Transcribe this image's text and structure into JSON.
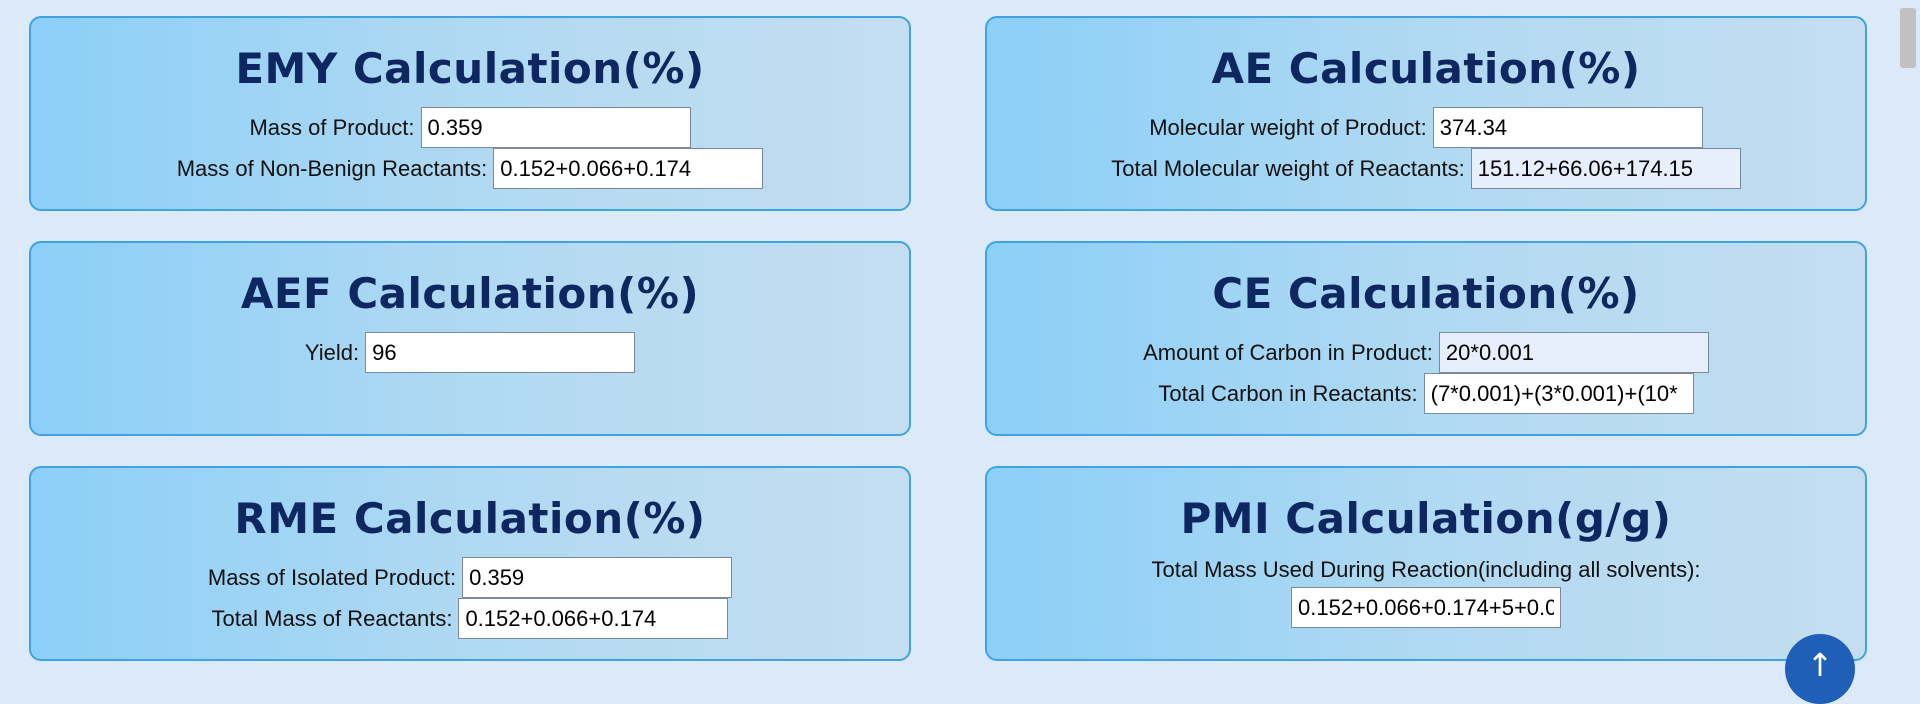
{
  "cards": [
    {
      "title": "EMY Calculation(%)",
      "fields": [
        {
          "label": "Mass of Product:",
          "value": "0.359"
        },
        {
          "label": "Mass of Non-Benign Reactants:",
          "value": "0.152+0.066+0.174"
        }
      ]
    },
    {
      "title": "AE Calculation(%)",
      "fields": [
        {
          "label": "Molecular weight of Product:",
          "value": "374.34"
        },
        {
          "label": "Total Molecular weight of Reactants:",
          "value": "151.12+66.06+174.15"
        }
      ]
    },
    {
      "title": "AEF Calculation(%)",
      "fields": [
        {
          "label": "Yield:",
          "value": "96"
        }
      ]
    },
    {
      "title": "CE Calculation(%)",
      "fields": [
        {
          "label": "Amount of Carbon in Product:",
          "value": "20*0.001"
        },
        {
          "label": "Total Carbon in Reactants:",
          "value": "(7*0.001)+(3*0.001)+(10*"
        }
      ]
    },
    {
      "title": "RME Calculation(%)",
      "fields": [
        {
          "label": "Mass of Isolated Product:",
          "value": "0.359"
        },
        {
          "label": "Total Mass of Reactants:",
          "value": "0.152+0.066+0.174"
        }
      ]
    },
    {
      "title": "PMI Calculation(g/g)",
      "fields": [
        {
          "label": "Total Mass Used During Reaction(including all solvents):",
          "value": "0.152+0.066+0.174+5+0.0"
        }
      ]
    }
  ],
  "scroll_top_icon": "arrow-up-icon",
  "scroll_top_glyph": "↑"
}
